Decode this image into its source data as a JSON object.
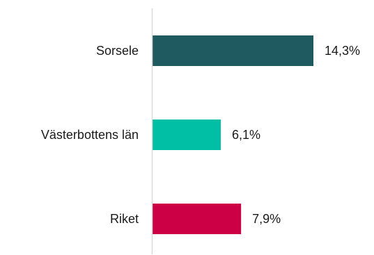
{
  "chart_data": {
    "type": "bar",
    "orientation": "horizontal",
    "categories": [
      "Sorsele",
      "Västerbottens län",
      "Riket"
    ],
    "values": [
      14.3,
      6.1,
      7.9
    ],
    "value_labels": [
      "14,3%",
      "6,1%",
      "7,9%"
    ],
    "colors": [
      "#1f5a61",
      "#00bfa5",
      "#cc0044"
    ],
    "axis_color": "#d9d9d9",
    "xlim": [
      0,
      14.3
    ],
    "grid": false,
    "legend": "none"
  }
}
